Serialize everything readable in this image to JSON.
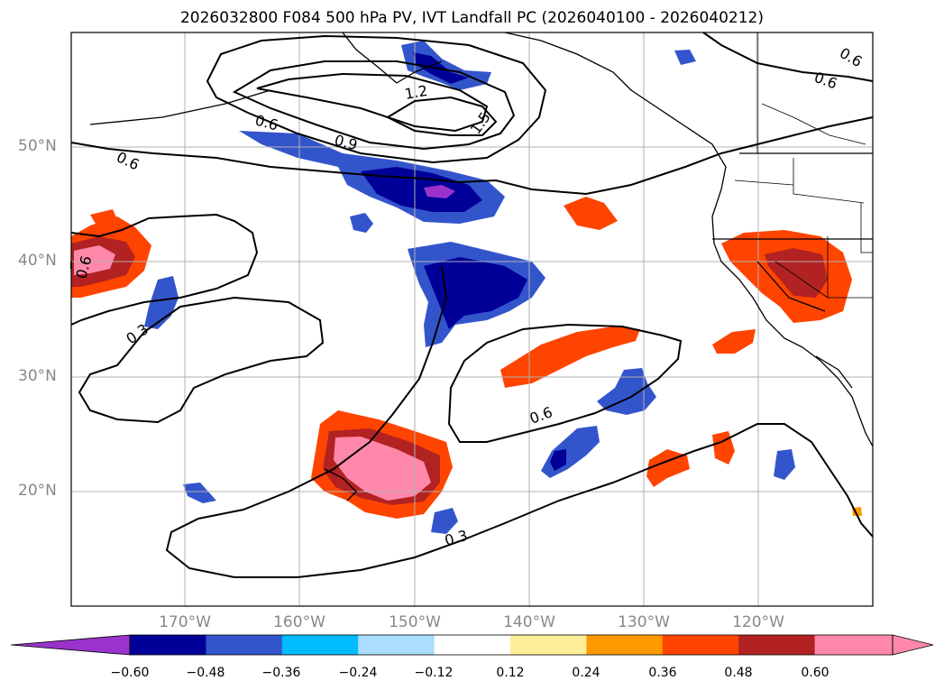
{
  "title": "2026032800 F084 500 hPa PV, IVT Landfall PC (2026040100 - 2026040212)",
  "lat_labels": [
    "50°N",
    "40°N",
    "30°N",
    "20°N"
  ],
  "lon_labels": [
    "170°W",
    "160°W",
    "150°W",
    "140°W",
    "130°W",
    "120°W"
  ],
  "contour_labels": [
    "0.6",
    "0.6",
    "0.6",
    "1.2",
    "1.5",
    "0.9",
    "0.6",
    "0.3",
    "0.6",
    "0.3",
    "0.6"
  ],
  "colorbar": {
    "ticks": [
      "−0.60",
      "−0.48",
      "−0.36",
      "−0.24",
      "−0.12",
      "0.12",
      "0.24",
      "0.36",
      "0.48",
      "0.60"
    ],
    "colors": [
      "#9933cc",
      "#000099",
      "#3355cc",
      "#00bbff",
      "#aaddff",
      "#ffffff",
      "#ffee99",
      "#ff9900",
      "#ff4400",
      "#b22222",
      "#ff88aa",
      "#ff88aa"
    ]
  }
}
